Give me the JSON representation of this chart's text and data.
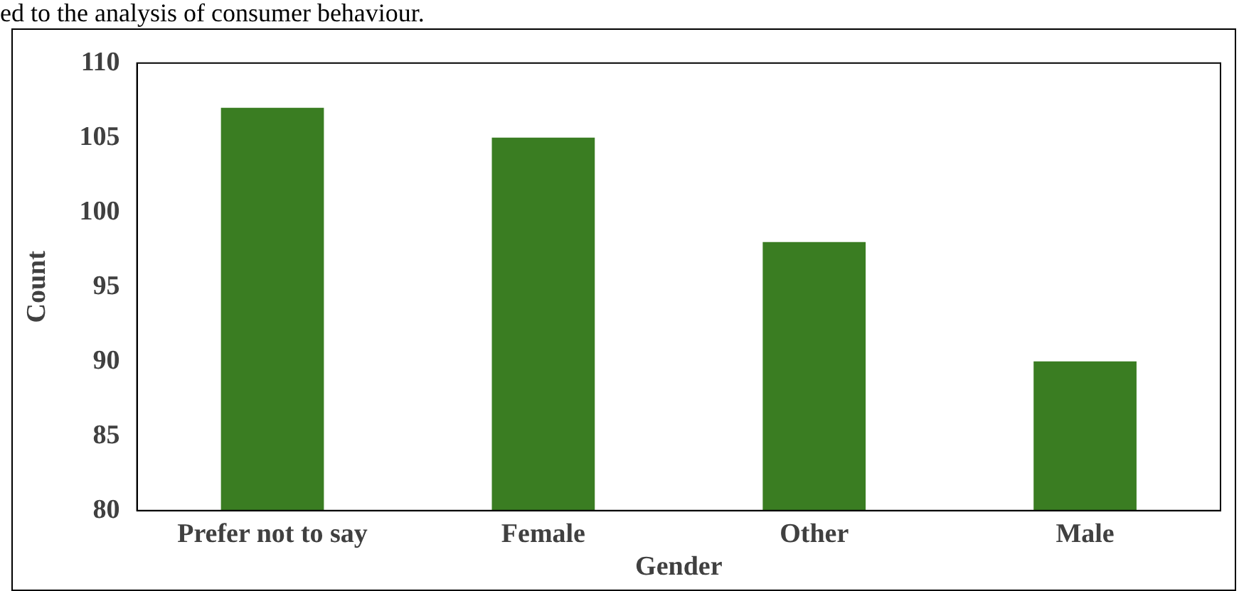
{
  "chart_data": {
    "type": "bar",
    "xlabel": "Gender",
    "ylabel": "Count",
    "categories": [
      "Prefer not to say",
      "Female",
      "Other",
      "Male"
    ],
    "values": [
      107,
      105,
      98,
      90
    ],
    "color": "#3a7d22",
    "ylim": [
      80,
      110
    ],
    "yticks": [
      80,
      85,
      90,
      95,
      100,
      105,
      110
    ],
    "grid": false,
    "annotations": [
      "ed to the analysis of consumer behaviour."
    ]
  }
}
